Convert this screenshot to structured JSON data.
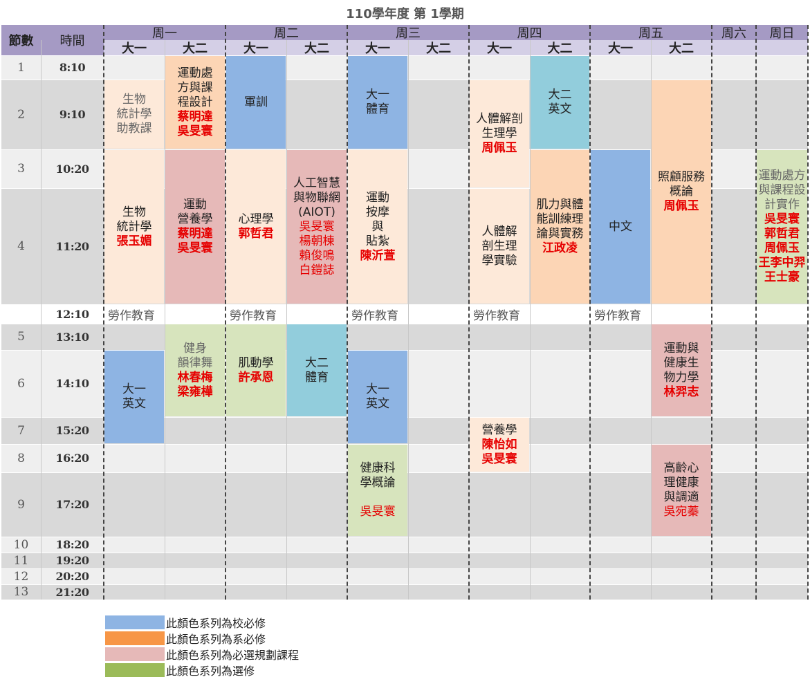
{
  "title": "110學年度 第 1學期",
  "header": {
    "col_period": "節數",
    "col_time": "時間",
    "days": [
      "周一",
      "周二",
      "周三",
      "周四",
      "周五",
      "周六",
      "周日"
    ],
    "year_labels": [
      "大一",
      "大二"
    ]
  },
  "rows": [
    {
      "num": "1",
      "time": "8:10"
    },
    {
      "num": "2",
      "time": "9:10"
    },
    {
      "num": "3",
      "time": "10:20"
    },
    {
      "num": "4",
      "time": "11:20"
    },
    {
      "num": "",
      "time": "12:10"
    },
    {
      "num": "5",
      "time": "13:10"
    },
    {
      "num": "6",
      "time": "14:10"
    },
    {
      "num": "7",
      "time": "15:20"
    },
    {
      "num": "8",
      "time": "16:20"
    },
    {
      "num": "9",
      "time": "17:20"
    },
    {
      "num": "10",
      "time": "18:20"
    },
    {
      "num": "11",
      "time": "19:20"
    },
    {
      "num": "12",
      "time": "20:20"
    },
    {
      "num": "13",
      "time": "21:20"
    }
  ],
  "lunch_label": "勞作教育",
  "courses": {
    "mon_y1_bio_ta": {
      "lines": [
        "生物",
        "統計學",
        "助教課"
      ]
    },
    "mon_y2_exercise_rx": {
      "lines": [
        "運動處",
        "方與課",
        "程設計"
      ],
      "teachers": [
        "蔡明達",
        "吳旻寰"
      ]
    },
    "tue_y1_military": {
      "lines": [
        "軍訓"
      ]
    },
    "wed_y1_pe": {
      "lines": [
        "大一",
        "體育"
      ]
    },
    "thu_y2_english": {
      "lines": [
        "大二",
        "英文"
      ]
    },
    "thu_y1_anatomy": {
      "lines": [
        "人體解剖",
        "生理學"
      ],
      "teachers": [
        "周佩玉"
      ]
    },
    "thu_y1_anatomy_lab": {
      "lines": [
        "人體解",
        "剖生理",
        "學實驗"
      ]
    },
    "mon_y1_biostat": {
      "lines": [
        "生物",
        "統計學"
      ],
      "teachers": [
        "張玉媚"
      ]
    },
    "mon_y2_nutrition": {
      "lines": [
        "運動",
        "營養學"
      ],
      "teachers": [
        "蔡明達",
        "吳旻寰"
      ]
    },
    "tue_y1_psych": {
      "lines": [
        "心理學"
      ],
      "teachers": [
        "郭哲君"
      ]
    },
    "tue_y2_aiot": {
      "lines": [
        "人工智慧",
        "與物聯網",
        "(AIOT)"
      ],
      "teachers": [
        "吳旻寰",
        "楊朝棟",
        "賴俊鳴",
        "白鎧誌"
      ]
    },
    "wed_y1_massage": {
      "lines": [
        "運動",
        "按摩",
        "與",
        "貼紮"
      ],
      "teachers": [
        "陳沂萱"
      ]
    },
    "thu_y2_strength": {
      "lines": [
        "肌力與體",
        "能訓練理",
        "論與實務"
      ],
      "teachers": [
        "江政凌"
      ]
    },
    "fri_y1_chinese": {
      "lines": [
        "中文"
      ]
    },
    "fri_y2_care": {
      "lines": [
        "照顧服務",
        "概論"
      ],
      "teachers": [
        "周佩玉"
      ]
    },
    "sun_exercise_rx_practice": {
      "lines": [
        "運動處方",
        "與課程設",
        "計實作"
      ],
      "teachers": [
        "吳旻寰",
        "郭哲君",
        "周佩玉",
        "王李中羿",
        "王士豪"
      ]
    },
    "mon_y2_aerobic": {
      "lines": [
        "健身",
        "韻律舞"
      ],
      "teachers": [
        "林春梅",
        "梁雍樺"
      ]
    },
    "tue_y1_kinesiology": {
      "lines": [
        "肌動學"
      ],
      "teachers": [
        "許承恩"
      ]
    },
    "tue_y2_pe": {
      "lines": [
        "大二",
        "體育"
      ]
    },
    "mon_y1_english": {
      "lines": [
        "大一",
        "英文"
      ]
    },
    "wed_y1_english": {
      "lines": [
        "大一",
        "英文"
      ]
    },
    "fri_y2_biomech": {
      "lines": [
        "運動與",
        "健康生",
        "物力學"
      ],
      "teachers": [
        "林羿志"
      ]
    },
    "thu_y1_nutrition": {
      "lines": [
        "營養學"
      ],
      "teachers": [
        "陳怡如",
        "吳旻寰"
      ]
    },
    "wed_y1_health": {
      "lines": [
        "健康科",
        "學概論",
        ""
      ],
      "teachers": [
        "吳旻寰"
      ]
    },
    "fri_y2_aging": {
      "lines": [
        "高齡心",
        "理健康",
        "與調適"
      ],
      "teachers": [
        "吳宛蓁"
      ]
    }
  },
  "legend": [
    {
      "color": "#8eb4e3",
      "label": "此顏色系列為校必修"
    },
    {
      "color": "#f79646",
      "label": "此顏色系列為系必修"
    },
    {
      "color": "#e6b9b8",
      "label": "此顏色系列為必選規劃課程"
    },
    {
      "color": "#9bbb59",
      "label": "此顏色系列為選修"
    }
  ]
}
